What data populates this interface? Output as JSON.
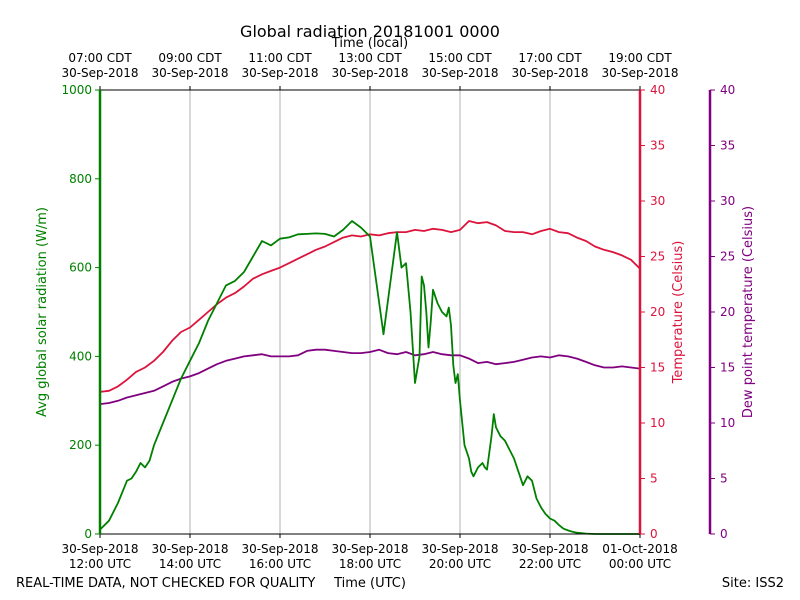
{
  "chart_data": {
    "type": "line",
    "title": "Global radiation 20181001 0000",
    "top_axis_label": "Time (local)",
    "xlabel": "Time (UTC)",
    "x_range_hours_utc": [
      12,
      24
    ],
    "x_ticks_utc": [
      {
        "hour": 12,
        "date": "30-Sep-2018",
        "time": "12:00 UTC"
      },
      {
        "hour": 14,
        "date": "30-Sep-2018",
        "time": "14:00 UTC"
      },
      {
        "hour": 16,
        "date": "30-Sep-2018",
        "time": "16:00 UTC"
      },
      {
        "hour": 18,
        "date": "30-Sep-2018",
        "time": "18:00 UTC"
      },
      {
        "hour": 20,
        "date": "30-Sep-2018",
        "time": "20:00 UTC"
      },
      {
        "hour": 22,
        "date": "30-Sep-2018",
        "time": "22:00 UTC"
      },
      {
        "hour": 24,
        "date": "01-Oct-2018",
        "time": "00:00 UTC"
      }
    ],
    "x_ticks_local": [
      {
        "hour": 12,
        "time": "07:00 CDT",
        "date": "30-Sep-2018"
      },
      {
        "hour": 14,
        "time": "09:00 CDT",
        "date": "30-Sep-2018"
      },
      {
        "hour": 16,
        "time": "11:00 CDT",
        "date": "30-Sep-2018"
      },
      {
        "hour": 18,
        "time": "13:00 CDT",
        "date": "30-Sep-2018"
      },
      {
        "hour": 20,
        "time": "15:00 CDT",
        "date": "30-Sep-2018"
      },
      {
        "hour": 22,
        "time": "17:00 CDT",
        "date": "30-Sep-2018"
      },
      {
        "hour": 24,
        "time": "19:00 CDT",
        "date": "30-Sep-2018"
      }
    ],
    "axes": {
      "radiation": {
        "label": "Avg global solar radiation (W/m)",
        "range": [
          0,
          1000
        ],
        "ticks": [
          0,
          200,
          400,
          600,
          800,
          1000
        ],
        "color": "#008000"
      },
      "temperature": {
        "label": "Temperature (Celsius)",
        "range": [
          0,
          40
        ],
        "ticks": [
          0,
          5,
          10,
          15,
          20,
          25,
          30,
          35,
          40
        ],
        "color": "#dc143c"
      },
      "dewpoint": {
        "label": "Dew point temperature (Celsius)",
        "range": [
          0,
          40
        ],
        "ticks": [
          0,
          5,
          10,
          15,
          20,
          25,
          30,
          35,
          40
        ],
        "color": "#800080"
      }
    },
    "series": [
      {
        "name": "Avg global solar radiation",
        "axis": "radiation",
        "color": "#008000",
        "x": [
          12.0,
          12.2,
          12.4,
          12.6,
          12.7,
          12.8,
          12.9,
          13.0,
          13.1,
          13.2,
          13.4,
          13.6,
          13.8,
          14.0,
          14.2,
          14.4,
          14.6,
          14.8,
          15.0,
          15.2,
          15.4,
          15.6,
          15.8,
          16.0,
          16.2,
          16.4,
          16.6,
          16.8,
          17.0,
          17.2,
          17.4,
          17.6,
          17.8,
          18.0,
          18.3,
          18.6,
          18.7,
          18.8,
          18.9,
          19.0,
          19.1,
          19.15,
          19.2,
          19.25,
          19.3,
          19.35,
          19.4,
          19.5,
          19.6,
          19.7,
          19.75,
          19.8,
          19.85,
          19.9,
          19.95,
          20.0,
          20.1,
          20.2,
          20.25,
          20.3,
          20.4,
          20.5,
          20.55,
          20.6,
          20.7,
          20.75,
          20.8,
          20.9,
          21.0,
          21.2,
          21.4,
          21.5,
          21.6,
          21.7,
          21.8,
          21.9,
          21.95,
          22.0,
          22.1,
          22.2,
          22.3,
          22.4,
          22.5,
          22.6,
          22.7,
          22.8,
          23.0,
          23.2,
          23.4,
          23.6,
          23.8,
          24.0
        ],
        "values": [
          10,
          30,
          70,
          120,
          125,
          140,
          160,
          150,
          165,
          200,
          250,
          300,
          350,
          390,
          430,
          480,
          520,
          560,
          570,
          590,
          625,
          660,
          650,
          665,
          668,
          675,
          676,
          677,
          676,
          670,
          685,
          705,
          690,
          670,
          450,
          680,
          600,
          610,
          500,
          340,
          400,
          580,
          560,
          500,
          420,
          480,
          550,
          520,
          500,
          490,
          510,
          470,
          380,
          340,
          360,
          300,
          200,
          170,
          140,
          130,
          150,
          160,
          150,
          145,
          220,
          270,
          240,
          220,
          210,
          170,
          110,
          130,
          120,
          80,
          60,
          45,
          40,
          35,
          30,
          20,
          12,
          8,
          5,
          3,
          2,
          1,
          0,
          0,
          0,
          0,
          0,
          0
        ]
      },
      {
        "name": "Temperature",
        "axis": "temperature",
        "color": "#dc143c",
        "x": [
          12.0,
          12.2,
          12.4,
          12.6,
          12.8,
          13.0,
          13.2,
          13.4,
          13.6,
          13.8,
          14.0,
          14.2,
          14.4,
          14.6,
          14.8,
          15.0,
          15.2,
          15.4,
          15.6,
          15.8,
          16.0,
          16.2,
          16.4,
          16.6,
          16.8,
          17.0,
          17.2,
          17.4,
          17.6,
          17.8,
          18.0,
          18.2,
          18.4,
          18.6,
          18.8,
          19.0,
          19.2,
          19.4,
          19.6,
          19.8,
          20.0,
          20.2,
          20.4,
          20.6,
          20.8,
          21.0,
          21.2,
          21.4,
          21.6,
          21.8,
          22.0,
          22.2,
          22.4,
          22.6,
          22.8,
          23.0,
          23.2,
          23.4,
          23.6,
          23.8,
          24.0
        ],
        "values": [
          12.8,
          12.9,
          13.3,
          13.9,
          14.6,
          15.0,
          15.6,
          16.4,
          17.4,
          18.2,
          18.6,
          19.3,
          20.0,
          20.7,
          21.3,
          21.7,
          22.3,
          23.0,
          23.4,
          23.7,
          24.0,
          24.4,
          24.8,
          25.2,
          25.6,
          25.9,
          26.3,
          26.7,
          26.9,
          26.8,
          27.0,
          26.9,
          27.1,
          27.2,
          27.2,
          27.4,
          27.3,
          27.5,
          27.4,
          27.2,
          27.4,
          28.2,
          28.0,
          28.1,
          27.8,
          27.3,
          27.2,
          27.2,
          27.0,
          27.3,
          27.5,
          27.2,
          27.1,
          26.7,
          26.4,
          25.9,
          25.6,
          25.4,
          25.1,
          24.7,
          23.9
        ]
      },
      {
        "name": "Dew point temperature",
        "axis": "dewpoint",
        "color": "#800080",
        "x": [
          12.0,
          12.2,
          12.4,
          12.6,
          12.8,
          13.0,
          13.2,
          13.4,
          13.6,
          13.8,
          14.0,
          14.2,
          14.4,
          14.6,
          14.8,
          15.0,
          15.2,
          15.4,
          15.6,
          15.8,
          16.0,
          16.2,
          16.4,
          16.6,
          16.8,
          17.0,
          17.2,
          17.4,
          17.6,
          17.8,
          18.0,
          18.2,
          18.4,
          18.6,
          18.8,
          19.0,
          19.2,
          19.4,
          19.6,
          19.8,
          20.0,
          20.2,
          20.4,
          20.6,
          20.8,
          21.0,
          21.2,
          21.4,
          21.6,
          21.8,
          22.0,
          22.2,
          22.4,
          22.6,
          22.8,
          23.0,
          23.2,
          23.4,
          23.6,
          23.8,
          24.0
        ],
        "values": [
          11.7,
          11.8,
          12.0,
          12.3,
          12.5,
          12.7,
          12.9,
          13.3,
          13.7,
          14.0,
          14.2,
          14.5,
          14.9,
          15.3,
          15.6,
          15.8,
          16.0,
          16.1,
          16.2,
          16.0,
          16.0,
          16.0,
          16.1,
          16.5,
          16.6,
          16.6,
          16.5,
          16.4,
          16.3,
          16.3,
          16.4,
          16.6,
          16.3,
          16.2,
          16.4,
          16.1,
          16.2,
          16.4,
          16.2,
          16.1,
          16.1,
          15.8,
          15.4,
          15.5,
          15.3,
          15.4,
          15.5,
          15.7,
          15.9,
          16.0,
          15.9,
          16.1,
          16.0,
          15.8,
          15.5,
          15.2,
          15.0,
          15.0,
          15.1,
          15.0,
          14.9
        ]
      }
    ]
  },
  "footer": {
    "disclaimer": "REAL-TIME DATA, NOT CHECKED FOR QUALITY",
    "site": "Site: ISS2"
  }
}
